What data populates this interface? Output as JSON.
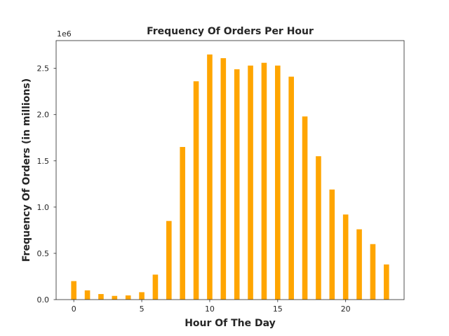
{
  "chart_data": {
    "type": "bar",
    "title": "Frequency Of Orders Per Hour",
    "xlabel": "Hour Of The Day",
    "ylabel": "Frequency Of Orders (in millions)",
    "y_offset_label": "1e6",
    "categories": [
      0,
      1,
      2,
      3,
      4,
      5,
      6,
      7,
      8,
      9,
      10,
      11,
      12,
      13,
      14,
      15,
      16,
      17,
      18,
      19,
      20,
      21,
      22,
      23
    ],
    "values": [
      200000,
      100000,
      60000,
      40000,
      45000,
      80000,
      270000,
      850000,
      1650000,
      2360000,
      2650000,
      2610000,
      2490000,
      2530000,
      2560000,
      2530000,
      2410000,
      1980000,
      1550000,
      1190000,
      920000,
      760000,
      600000,
      380000
    ],
    "xlim": [
      -1.3,
      24.3
    ],
    "ylim": [
      0,
      2800000
    ],
    "x_ticks": [
      0,
      5,
      10,
      15,
      20
    ],
    "x_tick_labels": [
      "0",
      "5",
      "10",
      "15",
      "20"
    ],
    "y_ticks": [
      0,
      500000,
      1000000,
      1500000,
      2000000,
      2500000
    ],
    "y_tick_labels": [
      "0.0",
      "0.5",
      "1.0",
      "1.5",
      "2.0",
      "2.5"
    ],
    "bar_color": "#ffa500",
    "grid": false,
    "legend": "none"
  }
}
